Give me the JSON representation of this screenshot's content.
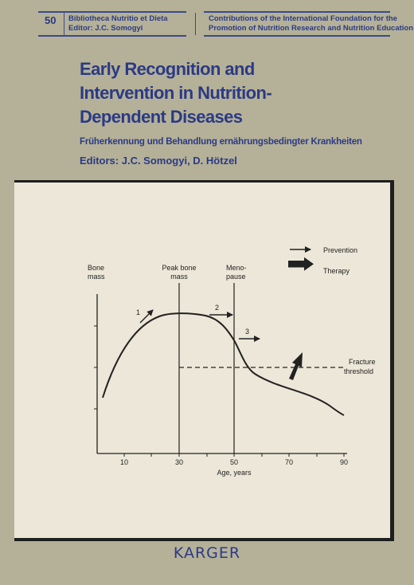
{
  "header": {
    "volume": "50",
    "series_line1": "Bibliotheca Nutritio et Dieta",
    "series_line2": "Editor: J.C. Somogyi",
    "contrib_line1": "Contributions of the International Foundation for the",
    "contrib_line2": "Promotion of Nutrition Research and Nutrition Education"
  },
  "title_lines": [
    "Early Recognition and",
    "Intervention in Nutrition-",
    "Dependent Diseases"
  ],
  "subtitle": "Früherkennung und Behandlung ernährungsbedingter Krankheiten",
  "editors": "Editors: J.C. Somogyi, D. Hötzel",
  "figure": {
    "y_label_line1": "Bone",
    "y_label_line2": "mass",
    "x_label": "Age, years",
    "x_ticks": [
      "10",
      "30",
      "50",
      "70",
      "90"
    ],
    "peak_label_line1": "Peak bone",
    "peak_label_line2": "mass",
    "meno_label_line1": "Meno-",
    "meno_label_line2": "pause",
    "fracture_label_line1": "Fracture",
    "fracture_label_line2": "threshold",
    "legend_prevention": "Prevention",
    "legend_therapy": "Therapy",
    "arrow_labels": [
      "1",
      "2",
      "3"
    ]
  },
  "publisher": "KARGER",
  "colors": {
    "accent": "#2b3a85",
    "background": "#b5b198",
    "figure_bg": "#ece7d8"
  }
}
